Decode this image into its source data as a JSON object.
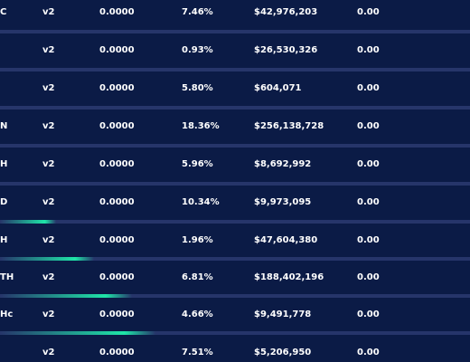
{
  "rows": [
    {
      "name": "C",
      "version": "v2",
      "value": "0.0000",
      "percent": "7.46%",
      "amount": "$42,976,203",
      "balance": "0.00"
    },
    {
      "name": "",
      "version": "v2",
      "value": "0.0000",
      "percent": "0.93%",
      "amount": "$26,530,326",
      "balance": "0.00"
    },
    {
      "name": "",
      "version": "v2",
      "value": "0.0000",
      "percent": "5.80%",
      "amount": "$604,071",
      "balance": "0.00"
    },
    {
      "name": "N",
      "version": "v2",
      "value": "0.0000",
      "percent": "18.36%",
      "amount": "$256,138,728",
      "balance": "0.00"
    },
    {
      "name": "H",
      "version": "v2",
      "value": "0.0000",
      "percent": "5.96%",
      "amount": "$8,692,992",
      "balance": "0.00"
    },
    {
      "name": "D",
      "version": "v2",
      "value": "0.0000",
      "percent": "10.34%",
      "amount": "$9,973,095",
      "balance": "0.00"
    },
    {
      "name": "H",
      "version": "v2",
      "value": "0.0000",
      "percent": "1.96%",
      "amount": "$47,604,380",
      "balance": "0.00"
    },
    {
      "name": "TH",
      "version": "v2",
      "value": "0.0000",
      "percent": "6.81%",
      "amount": "$188,402,196",
      "balance": "0.00"
    },
    {
      "name": "Hc",
      "version": "v2",
      "value": "0.0000",
      "percent": "4.66%",
      "amount": "$9,491,778",
      "balance": "0.00"
    },
    {
      "name": "",
      "version": "v2",
      "value": "0.0000",
      "percent": "7.51%",
      "amount": "$5,206,950",
      "balance": "0.00"
    }
  ],
  "separators": [
    {
      "glow": 0
    },
    {
      "glow": 0
    },
    {
      "glow": 0
    },
    {
      "glow": 0
    },
    {
      "glow": 0
    },
    {
      "glow": 0.12
    },
    {
      "glow": 0.2
    },
    {
      "glow": 0.28
    },
    {
      "glow": 0.33
    }
  ],
  "colors": {
    "background": "#0b1b46",
    "separator": "#26356a",
    "accent": "#1fe5a8"
  }
}
